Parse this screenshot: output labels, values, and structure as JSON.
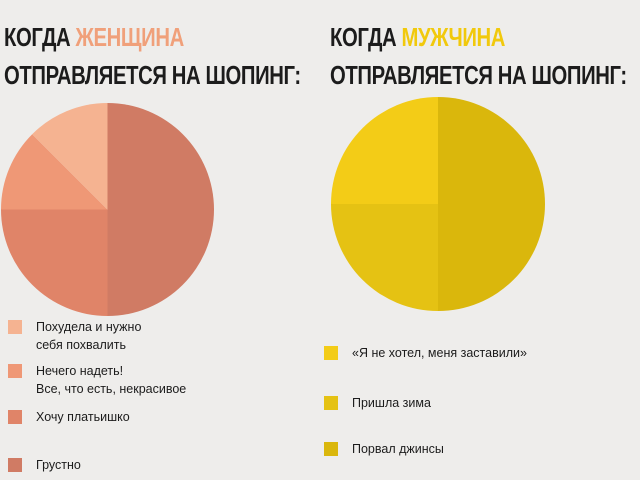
{
  "left": {
    "heading_line1_prefix": "КОГДА ",
    "heading_line1_accent": "ЖЕНЩИНА",
    "heading_line2": "ОТПРАВЛЯЕТСЯ НА ШОПИНГ:"
  },
  "right": {
    "heading_line1_prefix": "КОГДА ",
    "heading_line1_accent": "МУЖЧИНА",
    "heading_line2": "ОТПРАВЛЯЕТСЯ НА ШОПИНГ:"
  },
  "chart_data": [
    {
      "type": "pie",
      "title": "КОГДА ЖЕНЩИНА ОТПРАВЛЯЕТСЯ НА ШОПИНГ:",
      "legend_position": "bottom",
      "slices": [
        {
          "label": "Похудела и нужно\nсебя похвалить",
          "value": 12.5,
          "color": "#f5b391"
        },
        {
          "label": "Нечего надеть!\nВсе, что есть, некрасивое",
          "value": 12.5,
          "color": "#ef9876"
        },
        {
          "label": "Хочу платьишко",
          "value": 25,
          "color": "#e08468"
        },
        {
          "label": "Грустно",
          "value": 50,
          "color": "#d07b64"
        }
      ]
    },
    {
      "type": "pie",
      "title": "КОГДА МУЖЧИНА ОТПРАВЛЯЕТСЯ НА ШОПИНГ:",
      "legend_position": "bottom",
      "slices": [
        {
          "label": "«Я не хотел, меня заставили»",
          "value": 25,
          "color": "#f3cc17"
        },
        {
          "label": "Пришла зима",
          "value": 25,
          "color": "#e5c213"
        },
        {
          "label": "Порвал джинсы",
          "value": 50,
          "color": "#dab70c"
        }
      ]
    }
  ]
}
